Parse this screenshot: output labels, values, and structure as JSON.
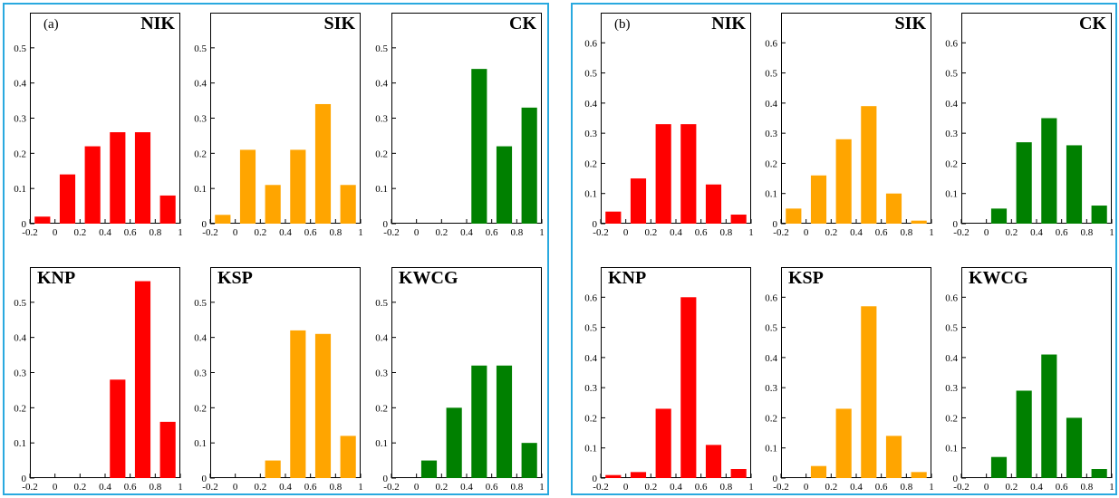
{
  "colors": {
    "red": "#ff0000",
    "orange": "#ffa500",
    "green": "#008000",
    "frame": "#29a9df"
  },
  "groups": [
    {
      "label": "(a)"
    },
    {
      "label": "(b)"
    }
  ],
  "chart_data": [
    {
      "type": "bar",
      "group": "(a)",
      "title": "NIK",
      "color": "red",
      "x": [
        -0.1,
        0.1,
        0.3,
        0.5,
        0.7,
        0.9
      ],
      "values": [
        0.02,
        0.14,
        0.22,
        0.26,
        0.26,
        0.08
      ],
      "xlim": [
        -0.2,
        1
      ],
      "ylim": [
        0,
        0.6
      ],
      "xticks": [
        "-0.2",
        "0",
        "0.2",
        "0.4",
        "0.6",
        "0.8",
        "1"
      ],
      "yticks": [
        "0",
        "0.1",
        "0.2",
        "0.3",
        "0.4",
        "0.5"
      ]
    },
    {
      "type": "bar",
      "group": "(a)",
      "title": "SIK",
      "color": "orange",
      "x": [
        -0.1,
        0.1,
        0.3,
        0.5,
        0.7,
        0.9
      ],
      "values": [
        0.025,
        0.21,
        0.11,
        0.21,
        0.34,
        0.11
      ],
      "xlim": [
        -0.2,
        1
      ],
      "ylim": [
        0,
        0.6
      ],
      "xticks": [
        "-0.2",
        "0",
        "0.2",
        "0.4",
        "0.6",
        "0.8",
        "1"
      ],
      "yticks": [
        "0",
        "0.1",
        "0.2",
        "0.3",
        "0.4",
        "0.5"
      ]
    },
    {
      "type": "bar",
      "group": "(a)",
      "title": "CK",
      "color": "green",
      "x": [
        -0.1,
        0.1,
        0.3,
        0.5,
        0.7,
        0.9
      ],
      "values": [
        0,
        0,
        0,
        0.44,
        0.22,
        0.33
      ],
      "xlim": [
        -0.2,
        1
      ],
      "ylim": [
        0,
        0.6
      ],
      "xticks": [
        "-0.2",
        "0",
        "0.2",
        "0.4",
        "0.6",
        "0.8",
        "1"
      ],
      "yticks": [
        "0",
        "0.1",
        "0.2",
        "0.3",
        "0.4",
        "0.5"
      ]
    },
    {
      "type": "bar",
      "group": "(a)",
      "title": "KNP",
      "color": "red",
      "x": [
        -0.1,
        0.1,
        0.3,
        0.5,
        0.7,
        0.9
      ],
      "values": [
        0,
        0,
        0,
        0.28,
        0.56,
        0.16
      ],
      "xlim": [
        -0.2,
        1
      ],
      "ylim": [
        0,
        0.6
      ],
      "xticks": [
        "-0.2",
        "0",
        "0.2",
        "0.4",
        "0.6",
        "0.8",
        "1"
      ],
      "yticks": [
        "0",
        "0.1",
        "0.2",
        "0.3",
        "0.4",
        "0.5"
      ]
    },
    {
      "type": "bar",
      "group": "(a)",
      "title": "KSP",
      "color": "orange",
      "x": [
        -0.1,
        0.1,
        0.3,
        0.5,
        0.7,
        0.9
      ],
      "values": [
        0,
        0,
        0.05,
        0.42,
        0.41,
        0.12
      ],
      "xlim": [
        -0.2,
        1
      ],
      "ylim": [
        0,
        0.6
      ],
      "xticks": [
        "-0.2",
        "0",
        "0.2",
        "0.4",
        "0.6",
        "0.8",
        "1"
      ],
      "yticks": [
        "0",
        "0.1",
        "0.2",
        "0.3",
        "0.4",
        "0.5"
      ]
    },
    {
      "type": "bar",
      "group": "(a)",
      "title": "KWCG",
      "color": "green",
      "x": [
        -0.1,
        0.1,
        0.3,
        0.5,
        0.7,
        0.9
      ],
      "values": [
        0,
        0.05,
        0.2,
        0.32,
        0.32,
        0.1
      ],
      "xlim": [
        -0.2,
        1
      ],
      "ylim": [
        0,
        0.6
      ],
      "xticks": [
        "-0.2",
        "0",
        "0.2",
        "0.4",
        "0.6",
        "0.8",
        "1"
      ],
      "yticks": [
        "0",
        "0.1",
        "0.2",
        "0.3",
        "0.4",
        "0.5"
      ]
    },
    {
      "type": "bar",
      "group": "(b)",
      "title": "NIK",
      "color": "red",
      "x": [
        -0.1,
        0.1,
        0.3,
        0.5,
        0.7,
        0.9
      ],
      "values": [
        0.04,
        0.15,
        0.33,
        0.33,
        0.13,
        0.03
      ],
      "xlim": [
        -0.2,
        1
      ],
      "ylim": [
        0,
        0.7
      ],
      "xticks": [
        "-0.2",
        "0",
        "0.2",
        "0.4",
        "0.6",
        "0.8",
        "1"
      ],
      "yticks": [
        "0",
        "0.1",
        "0.2",
        "0.3",
        "0.4",
        "0.5",
        "0.6"
      ]
    },
    {
      "type": "bar",
      "group": "(b)",
      "title": "SIK",
      "color": "orange",
      "x": [
        -0.1,
        0.1,
        0.3,
        0.5,
        0.7,
        0.9
      ],
      "values": [
        0.05,
        0.16,
        0.28,
        0.39,
        0.1,
        0.01
      ],
      "xlim": [
        -0.2,
        1
      ],
      "ylim": [
        0,
        0.7
      ],
      "xticks": [
        "-0.2",
        "0",
        "0.2",
        "0.4",
        "0.6",
        "0.8",
        "1"
      ],
      "yticks": [
        "0",
        "0.1",
        "0.2",
        "0.3",
        "0.4",
        "0.5",
        "0.6"
      ]
    },
    {
      "type": "bar",
      "group": "(b)",
      "title": "CK",
      "color": "green",
      "x": [
        -0.1,
        0.1,
        0.3,
        0.5,
        0.7,
        0.9
      ],
      "values": [
        0,
        0.05,
        0.27,
        0.35,
        0.26,
        0.06
      ],
      "xlim": [
        -0.2,
        1
      ],
      "ylim": [
        0,
        0.7
      ],
      "xticks": [
        "-0.2",
        "0",
        "0.2",
        "0.4",
        "0.6",
        "0.8",
        "1"
      ],
      "yticks": [
        "0",
        "0.1",
        "0.2",
        "0.3",
        "0.4",
        "0.5",
        "0.6"
      ]
    },
    {
      "type": "bar",
      "group": "(b)",
      "title": "KNP",
      "color": "red",
      "x": [
        -0.1,
        0.1,
        0.3,
        0.5,
        0.7,
        0.9
      ],
      "values": [
        0.01,
        0.02,
        0.23,
        0.6,
        0.11,
        0.03
      ],
      "xlim": [
        -0.2,
        1
      ],
      "ylim": [
        0,
        0.7
      ],
      "xticks": [
        "-0.2",
        "0",
        "0.2",
        "0.4",
        "0.6",
        "0.8",
        "1"
      ],
      "yticks": [
        "0",
        "0.1",
        "0.2",
        "0.3",
        "0.4",
        "0.5",
        "0.6"
      ]
    },
    {
      "type": "bar",
      "group": "(b)",
      "title": "KSP",
      "color": "orange",
      "x": [
        -0.1,
        0.1,
        0.3,
        0.5,
        0.7,
        0.9
      ],
      "values": [
        0,
        0.04,
        0.23,
        0.57,
        0.14,
        0.02
      ],
      "xlim": [
        -0.2,
        1
      ],
      "ylim": [
        0,
        0.7
      ],
      "xticks": [
        "-0.2",
        "0",
        "0.2",
        "0.4",
        "0.6",
        "0.8",
        "1"
      ],
      "yticks": [
        "0",
        "0.1",
        "0.2",
        "0.3",
        "0.4",
        "0.5",
        "0.6"
      ]
    },
    {
      "type": "bar",
      "group": "(b)",
      "title": "KWCG",
      "color": "green",
      "x": [
        -0.1,
        0.1,
        0.3,
        0.5,
        0.7,
        0.9
      ],
      "values": [
        0,
        0.07,
        0.29,
        0.41,
        0.2,
        0.03
      ],
      "xlim": [
        -0.2,
        1
      ],
      "ylim": [
        0,
        0.7
      ],
      "xticks": [
        "-0.2",
        "0",
        "0.2",
        "0.4",
        "0.6",
        "0.8",
        "1"
      ],
      "yticks": [
        "0",
        "0.1",
        "0.2",
        "0.3",
        "0.4",
        "0.5",
        "0.6"
      ]
    }
  ]
}
